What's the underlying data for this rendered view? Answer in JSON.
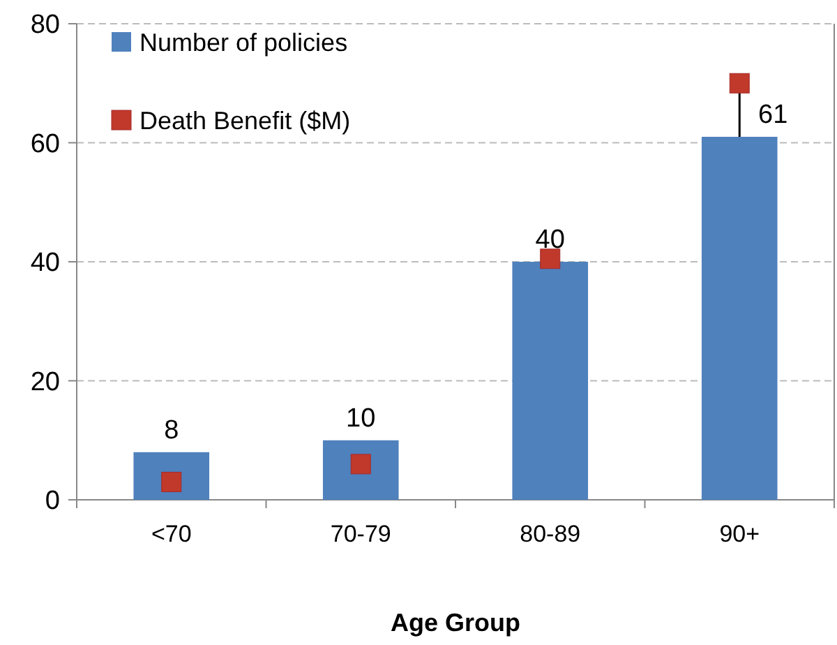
{
  "chart_data": {
    "type": "bar",
    "xlabel": "Age Group",
    "categories": [
      "<70",
      "70-79",
      "80-89",
      "90+"
    ],
    "series": [
      {
        "name": "Number of policies",
        "type": "bar",
        "color": "#4f81bd",
        "values": [
          8,
          10,
          40,
          61
        ],
        "value_labels": [
          "8",
          "10",
          "40",
          "61"
        ]
      },
      {
        "name": "Death Benefit ($M)",
        "type": "scatter",
        "color": "#c0392b",
        "marker": "square",
        "values": [
          3,
          6,
          40.5,
          70
        ],
        "errors": [
          null,
          null,
          null,
          [
            61,
            70
          ]
        ]
      }
    ],
    "ylim": [
      0,
      80
    ],
    "yticks": [
      0,
      20,
      40,
      60,
      80
    ],
    "grid": "y",
    "legend": "top left"
  }
}
